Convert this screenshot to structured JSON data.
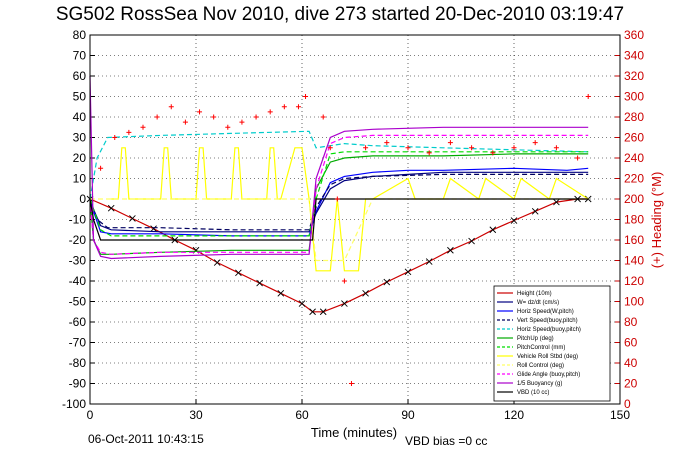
{
  "chart_data": {
    "type": "line",
    "title": "SG502 RossSea Nov 2010, dive 273 started 20-Dec-2010 03:19:47",
    "xlabel": "Time (minutes)",
    "ylabel_right": "(+) Heading (°M)",
    "xlim": [
      0,
      150
    ],
    "ylim": [
      -100,
      80
    ],
    "ylim_right": [
      0,
      360
    ],
    "xticks": [
      0,
      30,
      60,
      90,
      120,
      150
    ],
    "yticks": [
      -100,
      -90,
      -80,
      -70,
      -60,
      -50,
      -40,
      -30,
      -20,
      -10,
      0,
      10,
      20,
      30,
      40,
      50,
      60,
      70,
      80
    ],
    "yticks_right": [
      0,
      20,
      40,
      60,
      80,
      100,
      120,
      140,
      160,
      180,
      200,
      220,
      240,
      260,
      280,
      300,
      320,
      340,
      360
    ],
    "grid": true,
    "legend_position": "bottom-right",
    "series": [
      {
        "name": "Height (10m)",
        "color": "#cc0000",
        "style": "solid",
        "marker": "x",
        "x": [
          0,
          6,
          12,
          18,
          24,
          30,
          36,
          42,
          48,
          54,
          60,
          63,
          66,
          72,
          78,
          84,
          90,
          96,
          102,
          108,
          114,
          120,
          126,
          132,
          138,
          141
        ],
        "y": [
          0,
          -4.5,
          -9.5,
          -14.5,
          -20,
          -25,
          -31,
          -36,
          -41,
          -46,
          -51,
          -55,
          -55,
          -51,
          -46,
          -40.5,
          -35.5,
          -30.5,
          -25,
          -20.5,
          -15,
          -10.5,
          -6,
          -1.5,
          0,
          0
        ]
      },
      {
        "name": "W= dz/dt (cm/s)",
        "color": "#000080",
        "style": "solid",
        "x": [
          0,
          1,
          3,
          6,
          20,
          40,
          62,
          64,
          68,
          72,
          80,
          90,
          100,
          120,
          135,
          141
        ],
        "y": [
          0,
          -5,
          -13,
          -15,
          -16,
          -16,
          -16,
          -7,
          5,
          9,
          11,
          12,
          13,
          13,
          13,
          13
        ]
      },
      {
        "name": "Horiz Speed(W,pitch)",
        "color": "#0000ff",
        "style": "solid",
        "x": [
          0,
          1,
          3,
          6,
          20,
          40,
          62,
          64,
          68,
          72,
          80,
          90,
          100,
          120,
          135,
          141
        ],
        "y": [
          0,
          -6,
          -16,
          -17,
          -17,
          -18,
          -18,
          -6,
          8,
          11,
          13,
          14,
          14,
          15,
          14,
          15
        ]
      },
      {
        "name": "Vert Speed(buoy,pitch)",
        "color": "#000060",
        "style": "dashed",
        "x": [
          0,
          2,
          5,
          20,
          40,
          62,
          64,
          68,
          72,
          80,
          100,
          120,
          141
        ],
        "y": [
          0,
          -10,
          -14,
          -14,
          -15,
          -15,
          -4,
          7,
          10,
          11,
          12,
          12,
          12
        ]
      },
      {
        "name": "Horiz Speed(buoy,pitch)",
        "color": "#00cccc",
        "style": "dashed",
        "x": [
          0,
          2,
          5,
          20,
          40,
          62,
          64,
          68,
          72,
          80,
          100,
          120,
          141
        ],
        "y": [
          0,
          20,
          30,
          31,
          32,
          33,
          25,
          26,
          27,
          26,
          25,
          24,
          23
        ]
      },
      {
        "name": "PitchUp (deg)",
        "color": "#00aa00",
        "style": "solid",
        "x": [
          0,
          1,
          3,
          6,
          20,
          40,
          62,
          64,
          68,
          72,
          80,
          100,
          120,
          141
        ],
        "y": [
          0,
          -20,
          -27,
          -27,
          -26,
          -25,
          -25,
          5,
          18,
          20,
          21,
          21,
          22,
          22
        ]
      },
      {
        "name": "PitchControl (mm)",
        "color": "#00dd00",
        "style": "dashed",
        "x": [
          0,
          3,
          6,
          20,
          40,
          62,
          64,
          68,
          72,
          100,
          141
        ],
        "y": [
          0,
          -15,
          -18,
          -18,
          -18,
          -18,
          0,
          22,
          23,
          23,
          23
        ]
      },
      {
        "name": "Vehicle Roll Stbd (deg)",
        "color": "#ffff00",
        "style": "solid",
        "x": [
          6,
          8,
          9,
          10,
          11,
          12,
          20,
          21,
          22,
          23,
          24,
          30,
          31,
          32,
          33,
          34,
          40,
          41,
          42,
          43,
          44,
          50,
          51,
          52,
          53,
          54,
          58,
          60,
          62,
          64,
          68,
          70,
          72,
          76,
          78,
          80,
          90,
          92,
          100,
          102,
          110,
          112,
          120,
          122,
          130,
          132,
          141
        ],
        "y": [
          0,
          0,
          25,
          25,
          0,
          0,
          0,
          25,
          25,
          0,
          0,
          0,
          25,
          25,
          0,
          0,
          0,
          25,
          25,
          0,
          0,
          0,
          25,
          25,
          0,
          0,
          25,
          25,
          0,
          -35,
          -35,
          0,
          -35,
          -35,
          0,
          0,
          10,
          0,
          0,
          10,
          0,
          10,
          0,
          10,
          0,
          10,
          0
        ]
      },
      {
        "name": "Roll Control (deg)",
        "color": "#ffff66",
        "style": "dashed",
        "x": [
          0,
          5,
          30,
          60,
          62,
          64,
          72,
          80,
          100,
          141
        ],
        "y": [
          0,
          0,
          0,
          0,
          0,
          -30,
          -30,
          0,
          0,
          0
        ]
      },
      {
        "name": "Glide Angle (buoy,pitch)",
        "color": "#ff00ff",
        "style": "dashed",
        "x": [
          0,
          1,
          3,
          6,
          20,
          40,
          62,
          64,
          68,
          72,
          80,
          100,
          120,
          141
        ],
        "y": [
          0,
          -20,
          -26,
          -27,
          -26,
          -26,
          -26,
          5,
          27,
          30,
          31,
          31,
          31,
          31
        ]
      },
      {
        "name": "1/5 Buoyancy (g)",
        "color": "#aa00cc",
        "style": "solid",
        "x": [
          0,
          1,
          3,
          6,
          20,
          40,
          62,
          64,
          68,
          72,
          80,
          100,
          120,
          141
        ],
        "y": [
          60,
          -20,
          -28,
          -29,
          -28,
          -27,
          -27,
          10,
          30,
          33,
          34,
          35,
          35,
          35
        ]
      },
      {
        "name": "VBD (10 cc)",
        "color": "#000000",
        "style": "solid",
        "x": [
          0,
          1,
          3,
          6,
          20,
          40,
          62,
          63,
          64,
          141
        ],
        "y": [
          0,
          -10,
          -20,
          -20,
          -20,
          -20,
          -20,
          -20,
          0,
          0
        ]
      },
      {
        "name": "Heading",
        "color": "#ff0000",
        "style": "markers",
        "axis": "right",
        "x": [
          3,
          7,
          11,
          15,
          19,
          23,
          27,
          31,
          35,
          39,
          43,
          47,
          51,
          55,
          59,
          61,
          66,
          68,
          70,
          72,
          74,
          78,
          84,
          90,
          96,
          102,
          108,
          114,
          120,
          126,
          132,
          138,
          141
        ],
        "y": [
          230,
          260,
          265,
          270,
          280,
          290,
          275,
          285,
          280,
          270,
          275,
          280,
          285,
          290,
          290,
          300,
          280,
          250,
          200,
          120,
          20,
          250,
          255,
          250,
          245,
          255,
          250,
          245,
          250,
          255,
          250,
          240,
          300
        ]
      }
    ]
  },
  "footer": {
    "timestamp": "06-Oct-2011 10:43:15",
    "vbd_bias": "VBD bias =0 cc"
  }
}
